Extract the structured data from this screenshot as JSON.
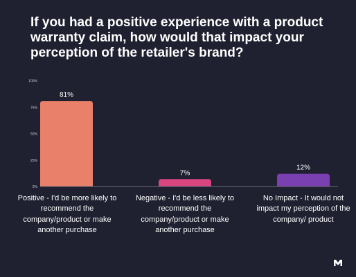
{
  "title": "If you had a positive experience with a product warranty claim, how would that impact your perception of the retailer's brand?",
  "chart_data": {
    "type": "bar",
    "categories": [
      "Positive - I'd be more likely to recommend the company/product or make another purchase",
      "Negative - I'd be less likely to recommend the company/product or make another purchase",
      "No Impact - It would not impact my perception of the company/ product"
    ],
    "values": [
      81,
      7,
      12
    ],
    "value_labels": [
      "81%",
      "7%",
      "12%"
    ],
    "colors": [
      "#e8806a",
      "#d9457f",
      "#7a3fb0"
    ],
    "ylim": [
      0,
      100
    ],
    "yticks": [
      0,
      25,
      50,
      75,
      100
    ],
    "ytick_labels": [
      "0%",
      "25%",
      "50%",
      "75%",
      "100%"
    ],
    "grid": false,
    "legend": "none"
  },
  "logo_icon": "brand-m-icon"
}
